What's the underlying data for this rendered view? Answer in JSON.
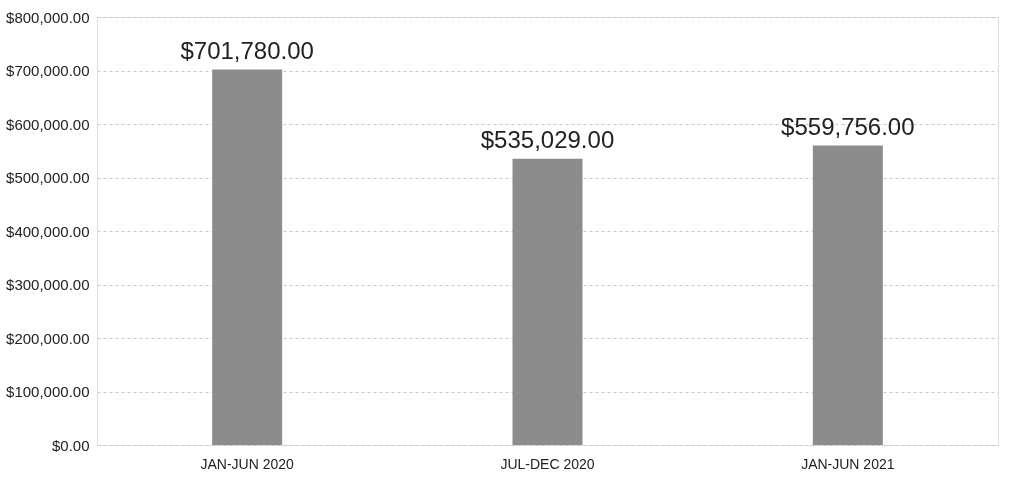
{
  "chart_data": {
    "type": "bar",
    "categories": [
      "JAN-JUN 2020",
      "JUL-DEC 2020",
      "JAN-JUN 2021"
    ],
    "values": [
      701780,
      535029,
      559756
    ],
    "color": "#8c8c8c",
    "value_labels": [
      "$701,780.00",
      "$535,029.00",
      "$559,756.00"
    ],
    "ylim": [
      0,
      800000
    ],
    "yticks": [
      {
        "value": 0,
        "label": "$0.00"
      },
      {
        "value": 100000,
        "label": "$100,000.00"
      },
      {
        "value": 200000,
        "label": "$200,000.00"
      },
      {
        "value": 300000,
        "label": "$300,000.00"
      },
      {
        "value": 400000,
        "label": "$400,000.00"
      },
      {
        "value": 500000,
        "label": "$500,000.00"
      },
      {
        "value": 600000,
        "label": "$600,000.00"
      },
      {
        "value": 700000,
        "label": "$700,000.00"
      },
      {
        "value": 800000,
        "label": "$800,000.00"
      }
    ],
    "grid": "y"
  }
}
